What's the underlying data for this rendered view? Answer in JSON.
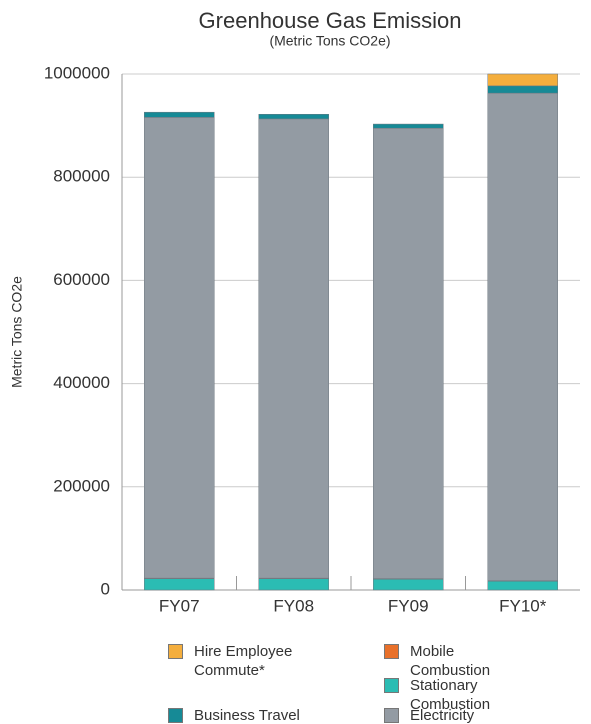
{
  "chart_data": {
    "type": "stacked_bar",
    "title": "Greenhouse Gas Emission",
    "subtitle": "(Metric Tons CO2e)",
    "y_label": "Metric Tons CO2e",
    "categories": [
      "FY07",
      "FY08",
      "FY09",
      "FY10*"
    ],
    "series": [
      {
        "name": "Stationary Combustion",
        "color": "#2bbcb3",
        "values": [
          22000,
          22000,
          21000,
          17000
        ]
      },
      {
        "name": "Mobile Combustion",
        "color": "#e8702a",
        "values": [
          1000,
          1000,
          1000,
          1000
        ]
      },
      {
        "name": "Electricity",
        "color": "#939ba3",
        "values": [
          893000,
          890000,
          873000,
          945000
        ]
      },
      {
        "name": "Business Travel",
        "color": "#168a96",
        "values": [
          10000,
          9000,
          8000,
          14000
        ]
      },
      {
        "name": "Hire Employee Commute*",
        "color": "#f4ae3d",
        "values": [
          0,
          0,
          0,
          23000
        ]
      }
    ],
    "ylim": [
      0,
      1000000
    ],
    "yticks": [
      0,
      200000,
      400000,
      600000,
      800000,
      1000000
    ],
    "grid": true
  }
}
